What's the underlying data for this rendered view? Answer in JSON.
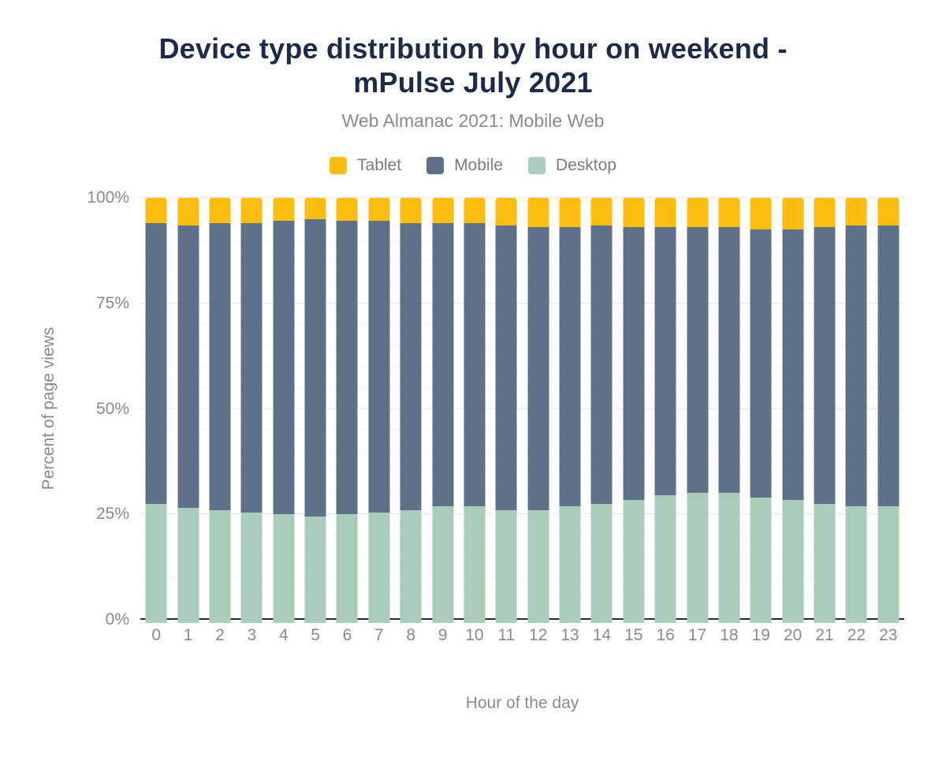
{
  "header": {
    "title": "Device type distribution by hour on weekend - mPulse July 2021",
    "title_lines": [
      "Device type distribution by hour on weekend -",
      "mPulse July 2021"
    ],
    "subtitle": "Web Almanac 2021: Mobile Web"
  },
  "legend": {
    "position": "top",
    "items": [
      {
        "label": "Tablet",
        "color": "#FBBD0F"
      },
      {
        "label": "Mobile",
        "color": "#5F7089"
      },
      {
        "label": "Desktop",
        "color": "#A9CCBC"
      }
    ]
  },
  "axes": {
    "y_title": "Percent of page views",
    "x_title": "Hour of the day",
    "y_tick_labels": [
      "0%",
      "25%",
      "50%",
      "75%",
      "100%"
    ],
    "y_tick_values": [
      0,
      25,
      50,
      75,
      100
    ]
  },
  "colors": {
    "title": "#1E2A49",
    "subtitle_text": "#8A8A8A",
    "legend_text": "#7C7C7C",
    "axis_text": "#8A8A8A",
    "axis_line": "#2B2B2B",
    "gridline_major": "#E9E9E9",
    "gridline_minor": "#F5F5F5",
    "background": "#FFFFFF"
  },
  "chart_data": {
    "type": "bar",
    "stacked": true,
    "title": "Device type distribution by hour on weekend - mPulse July 2021",
    "subtitle": "Web Almanac 2021: Mobile Web",
    "xlabel": "Hour of the day",
    "ylabel": "Percent of page views",
    "ylim": [
      0,
      100
    ],
    "y_major_step": 25,
    "y_minor_step": 5,
    "grid": true,
    "legend_position": "top",
    "legend_order": [
      "Tablet",
      "Mobile",
      "Desktop"
    ],
    "unit": "percent",
    "categories": [
      "0",
      "1",
      "2",
      "3",
      "4",
      "5",
      "6",
      "7",
      "8",
      "9",
      "10",
      "11",
      "12",
      "13",
      "14",
      "15",
      "16",
      "17",
      "18",
      "19",
      "20",
      "21",
      "22",
      "23"
    ],
    "series": [
      {
        "name": "Desktop",
        "color": "#A9CCBC",
        "stack_position": "bottom",
        "values": [
          27.5,
          26.5,
          26,
          25.5,
          25,
          24.5,
          25,
          25.5,
          26,
          27,
          27,
          26,
          26,
          27,
          27.5,
          28.5,
          29.5,
          30,
          30,
          29,
          28.5,
          27.5,
          27,
          27
        ]
      },
      {
        "name": "Mobile",
        "color": "#5F7089",
        "stack_position": "middle",
        "values": [
          66.5,
          67,
          68,
          68.5,
          69.5,
          70.5,
          69.5,
          69,
          68,
          67,
          67,
          67.5,
          67,
          66,
          66,
          64.5,
          63.5,
          63,
          63,
          63.5,
          64,
          65.5,
          66.5,
          66.5
        ]
      },
      {
        "name": "Tablet",
        "color": "#FBBD0F",
        "stack_position": "top",
        "values": [
          6,
          6.5,
          6,
          6,
          5.5,
          5,
          5.5,
          5.5,
          6,
          6,
          6,
          6.5,
          7,
          7,
          6.5,
          7,
          7,
          7,
          7,
          7.5,
          7.5,
          7,
          6.5,
          6.5
        ]
      }
    ]
  }
}
